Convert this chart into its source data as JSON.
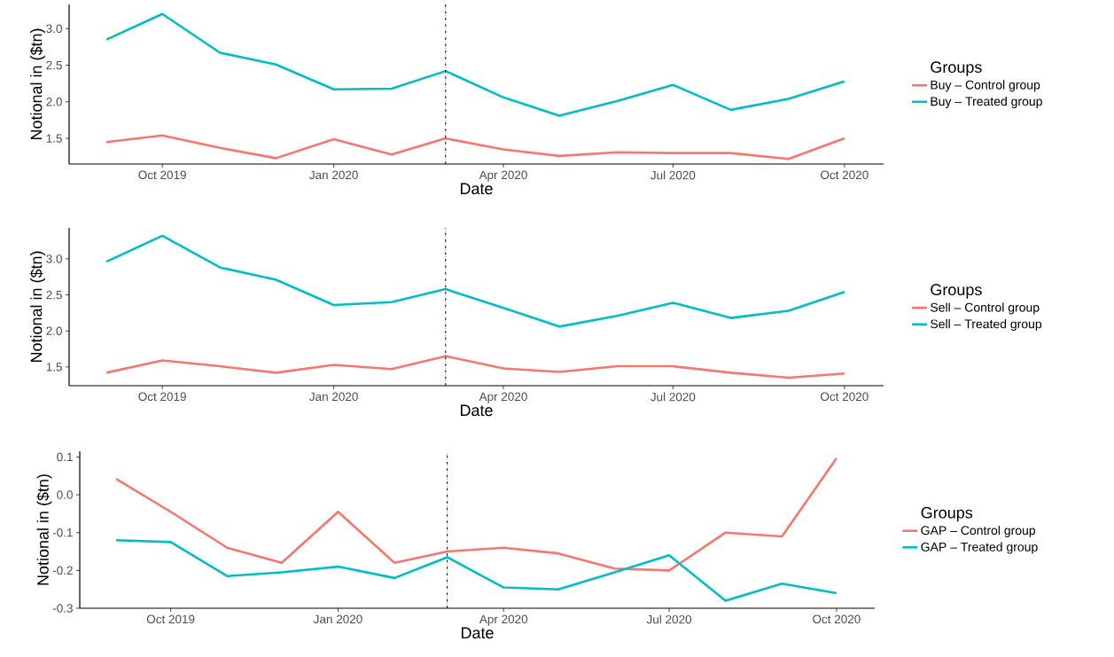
{
  "chart_data": [
    {
      "type": "line",
      "xlabel": "Date",
      "ylabel": "Notional in ($tn)",
      "legend_title": "Groups",
      "legend": "right",
      "grid": false,
      "marker": "none",
      "line_style": "solid",
      "x": [
        "2019-09-01",
        "2019-10-01",
        "2019-11-01",
        "2019-12-01",
        "2020-01-01",
        "2020-02-01",
        "2020-03-01",
        "2020-04-01",
        "2020-05-01",
        "2020-06-01",
        "2020-07-01",
        "2020-08-01",
        "2020-09-01",
        "2020-10-01"
      ],
      "xlim": [
        "2019-08-12",
        "2020-10-22"
      ],
      "xticks": [
        {
          "value": "2019-10-01",
          "label": "Oct 2019"
        },
        {
          "value": "2020-01-01",
          "label": "Jan 2020"
        },
        {
          "value": "2020-04-01",
          "label": "Apr 2020"
        },
        {
          "value": "2020-07-01",
          "label": "Jul 2020"
        },
        {
          "value": "2020-10-01",
          "label": "Oct 2020"
        }
      ],
      "ylim": [
        1.15,
        3.33
      ],
      "yticks": [
        {
          "value": 1.5,
          "label": "1.5"
        },
        {
          "value": 2,
          "label": "2.0"
        },
        {
          "value": 2.5,
          "label": "2.5"
        },
        {
          "value": 3,
          "label": "3.0"
        }
      ],
      "ref_lines": [
        {
          "axis": "x",
          "value": "2020-03-01",
          "line_style": "dashdot",
          "color": "#000000"
        }
      ],
      "series": [
        {
          "name": "Buy – Control group",
          "color": "#f8766d",
          "values": [
            1.45,
            1.54,
            1.37,
            1.23,
            1.49,
            1.28,
            1.5,
            1.35,
            1.26,
            1.31,
            1.3,
            1.3,
            1.22,
            1.5
          ]
        },
        {
          "name": "Buy – Treated group",
          "color": "#00bfc4",
          "values": [
            2.85,
            3.2,
            2.67,
            2.51,
            2.17,
            2.18,
            2.42,
            2.06,
            1.81,
            2.01,
            2.23,
            1.89,
            2.04,
            2.28
          ]
        }
      ]
    },
    {
      "type": "line",
      "xlabel": "Date",
      "ylabel": "Notional in ($tn)",
      "legend_title": "Groups",
      "legend": "right",
      "grid": false,
      "marker": "none",
      "line_style": "solid",
      "x": [
        "2019-09-01",
        "2019-10-01",
        "2019-11-01",
        "2019-12-01",
        "2020-01-01",
        "2020-02-01",
        "2020-03-01",
        "2020-04-01",
        "2020-05-01",
        "2020-06-01",
        "2020-07-01",
        "2020-08-01",
        "2020-09-01",
        "2020-10-01"
      ],
      "xlim": [
        "2019-08-12",
        "2020-10-22"
      ],
      "xticks": [
        {
          "value": "2019-10-01",
          "label": "Oct 2019"
        },
        {
          "value": "2020-01-01",
          "label": "Jan 2020"
        },
        {
          "value": "2020-04-01",
          "label": "Apr 2020"
        },
        {
          "value": "2020-07-01",
          "label": "Jul 2020"
        },
        {
          "value": "2020-10-01",
          "label": "Oct 2020"
        }
      ],
      "ylim": [
        1.24,
        3.43
      ],
      "yticks": [
        {
          "value": 1.5,
          "label": "1.5"
        },
        {
          "value": 2,
          "label": "2.0"
        },
        {
          "value": 2.5,
          "label": "2.5"
        },
        {
          "value": 3,
          "label": "3.0"
        }
      ],
      "ref_lines": [
        {
          "axis": "x",
          "value": "2020-03-01",
          "line_style": "dashdot",
          "color": "#000000"
        }
      ],
      "series": [
        {
          "name": "Sell – Control group",
          "color": "#f8766d",
          "values": [
            1.42,
            1.59,
            1.51,
            1.42,
            1.53,
            1.47,
            1.65,
            1.48,
            1.43,
            1.51,
            1.51,
            1.42,
            1.35,
            1.41
          ]
        },
        {
          "name": "Sell – Treated group",
          "color": "#00bfc4",
          "values": [
            2.96,
            3.32,
            2.88,
            2.71,
            2.36,
            2.4,
            2.58,
            2.32,
            2.06,
            2.21,
            2.39,
            2.18,
            2.28,
            2.54
          ]
        }
      ]
    },
    {
      "type": "line",
      "xlabel": "Date",
      "ylabel": "Notional in ($tn)",
      "legend_title": "Groups",
      "legend": "right",
      "grid": false,
      "marker": "none",
      "line_style": "solid",
      "x": [
        "2019-09-01",
        "2019-10-01",
        "2019-11-01",
        "2019-12-01",
        "2020-01-01",
        "2020-02-01",
        "2020-03-01",
        "2020-04-01",
        "2020-05-01",
        "2020-06-01",
        "2020-07-01",
        "2020-08-01",
        "2020-09-01",
        "2020-10-01"
      ],
      "xlim": [
        "2019-08-12",
        "2020-10-22"
      ],
      "xticks": [
        {
          "value": "2019-10-01",
          "label": "Oct 2019"
        },
        {
          "value": "2020-01-01",
          "label": "Jan 2020"
        },
        {
          "value": "2020-04-01",
          "label": "Apr 2020"
        },
        {
          "value": "2020-07-01",
          "label": "Jul 2020"
        },
        {
          "value": "2020-10-01",
          "label": "Oct 2020"
        }
      ],
      "ylim": [
        -0.3,
        0.115
      ],
      "yticks": [
        {
          "value": -0.3,
          "label": "-0.3"
        },
        {
          "value": -0.2,
          "label": "-0.2"
        },
        {
          "value": -0.1,
          "label": "-0.1"
        },
        {
          "value": 0,
          "label": "0.0"
        },
        {
          "value": 0.1,
          "label": "0.1"
        }
      ],
      "ref_lines": [
        {
          "axis": "x",
          "value": "2020-03-01",
          "line_style": "dashdot",
          "color": "#000000"
        }
      ],
      "series": [
        {
          "name": "GAP – Control group",
          "color": "#f8766d",
          "values": [
            0.042,
            -0.045,
            -0.14,
            -0.18,
            -0.045,
            -0.18,
            -0.15,
            -0.14,
            -0.155,
            -0.195,
            -0.2,
            -0.1,
            -0.11,
            0.097
          ]
        },
        {
          "name": "GAP – Treated group",
          "color": "#00bfc4",
          "values": [
            -0.12,
            -0.125,
            -0.215,
            -0.205,
            -0.19,
            -0.22,
            -0.165,
            -0.245,
            -0.25,
            -0.205,
            -0.16,
            -0.28,
            -0.235,
            -0.26
          ]
        }
      ]
    }
  ]
}
